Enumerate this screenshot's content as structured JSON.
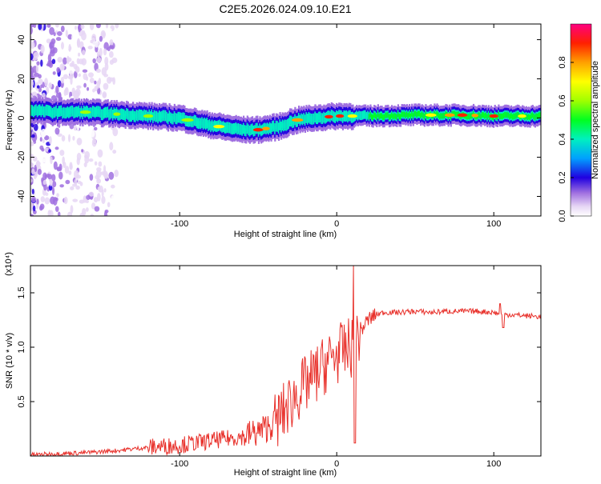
{
  "figure_title": "C2E5.2026.024.09.10.E21",
  "chart_data": [
    {
      "type": "heatmap",
      "title": "C2E5.2026.024.09.10.E21",
      "xlabel": "Height of straight line (km)",
      "ylabel": "Frequency (Hz)",
      "xlim": [
        -195,
        130
      ],
      "ylim": [
        -50,
        48
      ],
      "xticks": [
        -100,
        0,
        100
      ],
      "yticks": [
        -40,
        -20,
        0,
        20,
        40
      ],
      "xtick_labels": [
        "-100",
        "0",
        "100"
      ],
      "ytick_labels": [
        "-40",
        "-20",
        "0",
        "20",
        "40"
      ],
      "colorbar": {
        "label": "Normalized spectral amplitude",
        "range": [
          0,
          1
        ],
        "ticks": [
          0,
          0.2,
          0.4,
          0.6,
          0.8
        ],
        "tick_labels": [
          "0.0",
          "0.2",
          "0.4",
          "0.6",
          "0.8"
        ]
      },
      "ridge": {
        "x": [
          -195,
          -180,
          -160,
          -140,
          -120,
          -100,
          -85,
          -70,
          -60,
          -50,
          -42,
          -35,
          -30,
          -25,
          -15,
          0,
          20,
          50,
          80,
          100,
          130
        ],
        "freq_hz": [
          4,
          3,
          3,
          2,
          1,
          0,
          -3,
          -5,
          -6,
          -6,
          -5,
          -4,
          -2,
          -1,
          0,
          1,
          1,
          1.5,
          1.5,
          1,
          1
        ]
      }
    },
    {
      "type": "line",
      "xlabel": "Height of straight line (km)",
      "ylabel": "SNR (10 * v/v)",
      "y_multiplier": "(x10⁴)",
      "xlim": [
        -195,
        130
      ],
      "ylim": [
        0,
        1.75
      ],
      "xticks": [
        -100,
        0,
        100
      ],
      "yticks": [
        0.5,
        1.0,
        1.5
      ],
      "xtick_labels": [
        "-100",
        "0",
        "100"
      ],
      "ytick_labels": [
        "0.5",
        "1.0",
        "1.5"
      ],
      "series": [
        {
          "name": "SNR",
          "color": "#e8302a",
          "x": [
            -195,
            -180,
            -160,
            -140,
            -120,
            -100,
            -90,
            -80,
            -70,
            -60,
            -50,
            -45,
            -40,
            -35,
            -30,
            -25,
            -20,
            -15,
            -10,
            -5,
            0,
            5,
            10,
            15,
            20,
            25,
            30,
            40,
            50,
            60,
            70,
            80,
            90,
            100,
            105,
            110,
            120,
            130
          ],
          "values": [
            0.01,
            0.02,
            0.03,
            0.05,
            0.08,
            0.1,
            0.12,
            0.14,
            0.16,
            0.18,
            0.22,
            0.26,
            0.3,
            0.38,
            0.48,
            0.58,
            0.65,
            0.72,
            0.8,
            0.88,
            0.93,
            0.97,
            1.0,
            1.15,
            1.25,
            1.3,
            1.32,
            1.32,
            1.33,
            1.32,
            1.33,
            1.33,
            1.33,
            1.32,
            1.3,
            1.3,
            1.29,
            1.28
          ]
        }
      ]
    }
  ]
}
